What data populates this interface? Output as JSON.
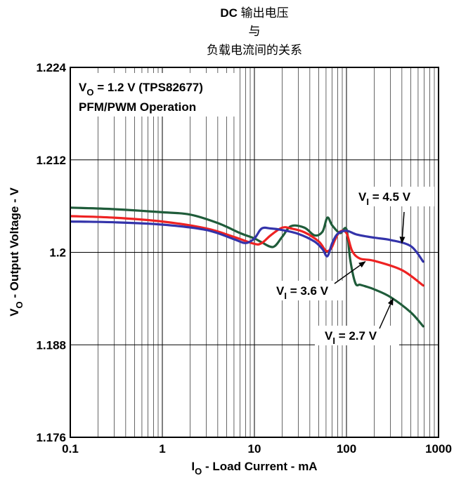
{
  "chart_data": {
    "type": "line",
    "title_lines": [
      "DC 输出电压",
      "与",
      "负载电流间的关系"
    ],
    "xlabel": {
      "main": "I",
      "sub": "O",
      "rest": " - Load Current - mA"
    },
    "ylabel": {
      "main": "V",
      "sub": "O",
      "rest": " - Output Voltage - V"
    },
    "x_scale": "log",
    "xlim": [
      0.1,
      1000
    ],
    "ylim": [
      1.176,
      1.224
    ],
    "x_ticks": [
      0.1,
      1,
      10,
      100,
      1000
    ],
    "x_tick_labels": [
      "0.1",
      "1",
      "10",
      "100",
      "1000"
    ],
    "y_ticks": [
      1.176,
      1.188,
      1.2,
      1.212,
      1.224
    ],
    "y_tick_labels": [
      "1.176",
      "1.188",
      "1.2",
      "1.212",
      "1.224"
    ],
    "grid": true,
    "annotation_box": {
      "line1": {
        "main": "V",
        "sub": "O",
        "rest": " = 1.2 V (TPS82677)"
      },
      "line2": "PFM/PWM Operation"
    },
    "series": [
      {
        "name": "V_I = 4.5 V",
        "color": "#3333aa",
        "x": [
          0.1,
          0.3,
          1,
          3,
          6,
          8,
          10,
          12,
          15,
          20,
          30,
          45,
          55,
          62,
          70,
          80,
          100,
          130,
          200,
          300,
          500,
          680
        ],
        "y": [
          1.204,
          1.2039,
          1.2036,
          1.2029,
          1.2017,
          1.2012,
          1.2018,
          1.2031,
          1.2031,
          1.2029,
          1.2024,
          1.2014,
          1.2004,
          1.1995,
          1.2012,
          1.2024,
          1.2028,
          1.2023,
          1.2019,
          1.2016,
          1.2008,
          1.1988
        ]
      },
      {
        "name": "V_I = 3.6 V",
        "color": "#ee2222",
        "x": [
          0.1,
          0.3,
          1,
          3,
          6,
          10,
          12,
          15,
          20,
          25,
          35,
          50,
          60,
          68,
          75,
          85,
          100,
          115,
          140,
          200,
          400,
          680
        ],
        "y": [
          1.2047,
          1.2045,
          1.204,
          1.2031,
          1.202,
          1.2011,
          1.2012,
          1.2022,
          1.2032,
          1.2031,
          1.2026,
          1.2014,
          1.2002,
          1.2005,
          1.2016,
          1.2027,
          1.2025,
          1.2002,
          1.1992,
          1.1989,
          1.1977,
          1.1957
        ]
      },
      {
        "name": "V_I = 2.7 V",
        "color": "#1f5c3a",
        "x": [
          0.1,
          0.3,
          1,
          2,
          4,
          7,
          10,
          12,
          16,
          20,
          25,
          35,
          45,
          55,
          62,
          70,
          85,
          100,
          110,
          125,
          140,
          160,
          200,
          300,
          500,
          680
        ],
        "y": [
          1.2058,
          1.2056,
          1.2052,
          1.2049,
          1.2038,
          1.2025,
          1.2018,
          1.2013,
          1.2007,
          1.202,
          1.2034,
          1.2032,
          1.2022,
          1.2027,
          1.2045,
          1.2035,
          1.2025,
          1.203,
          1.199,
          1.196,
          1.1958,
          1.1956,
          1.1952,
          1.1942,
          1.1922,
          1.1904
        ]
      }
    ],
    "series_labels": [
      {
        "main": "V",
        "sub": "I",
        "rest": " = 4.5 V",
        "arrow_to": [
          400,
          1.2012
        ]
      },
      {
        "main": "V",
        "sub": "I",
        "rest": " = 3.6 V",
        "arrow_to": [
          160,
          1.1988
        ]
      },
      {
        "main": "V",
        "sub": "I",
        "rest": " = 2.7 V",
        "arrow_to": [
          320,
          1.194
        ]
      }
    ]
  }
}
